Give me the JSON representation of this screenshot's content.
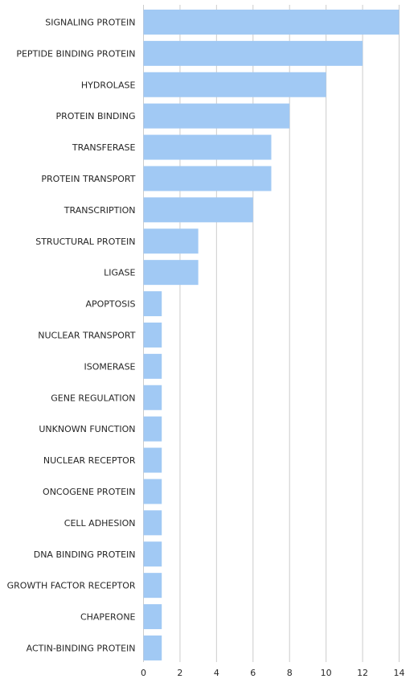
{
  "chart_data": {
    "type": "bar",
    "orientation": "horizontal",
    "title": "",
    "xlabel": "",
    "ylabel": "",
    "categories": [
      "SIGNALING PROTEIN",
      "PEPTIDE BINDING PROTEIN",
      "HYDROLASE",
      "PROTEIN BINDING",
      "TRANSFERASE",
      "PROTEIN TRANSPORT",
      "TRANSCRIPTION",
      "STRUCTURAL PROTEIN",
      "LIGASE",
      "APOPTOSIS",
      "NUCLEAR TRANSPORT",
      "ISOMERASE",
      "GENE REGULATION",
      "UNKNOWN FUNCTION",
      "NUCLEAR RECEPTOR",
      "ONCOGENE PROTEIN",
      "CELL ADHESION",
      "DNA BINDING PROTEIN",
      "GROWTH FACTOR RECEPTOR",
      "CHAPERONE",
      "ACTIN-BINDING PROTEIN"
    ],
    "values": [
      14,
      12,
      10,
      8,
      7,
      7,
      6,
      3,
      3,
      1,
      1,
      1,
      1,
      1,
      1,
      1,
      1,
      1,
      1,
      1,
      1
    ],
    "xlim": [
      0,
      14
    ],
    "x_ticks": [
      "0",
      "2",
      "4",
      "6",
      "8",
      "10",
      "12",
      "14"
    ],
    "grid": true,
    "colors": {
      "bar": "#a1c9f4",
      "grid": "#cccccc",
      "text": "#262626"
    }
  }
}
